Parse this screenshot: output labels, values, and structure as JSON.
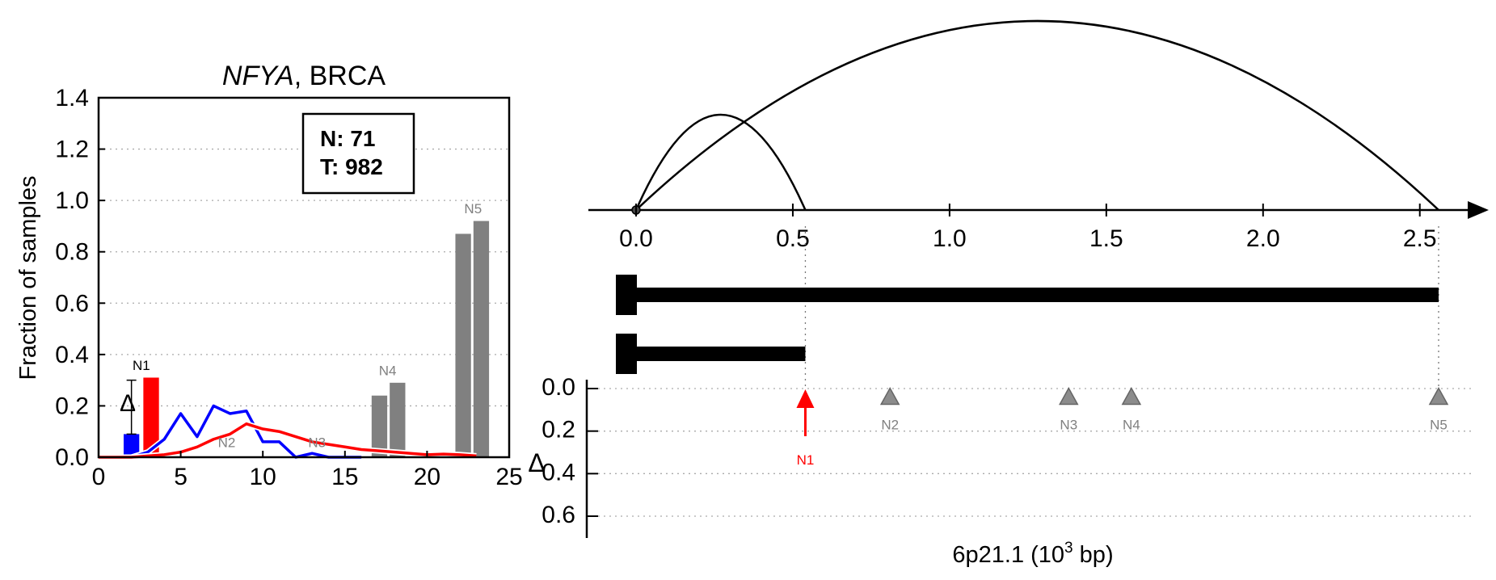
{
  "chart_data": [
    {
      "type": "bar",
      "title_gene": "NFYA",
      "title_rest": ", BRCA",
      "ylabel": "Fraction of samples",
      "xlabel": "",
      "xlim": [
        0,
        25
      ],
      "ylim": [
        0,
        1.4
      ],
      "xticks": [
        "0",
        "5",
        "10",
        "15",
        "20",
        "25"
      ],
      "yticks": [
        "0.0",
        "0.2",
        "0.4",
        "0.6",
        "0.8",
        "1.0",
        "1.2",
        "1.4"
      ],
      "grid": "y-dotted",
      "annotation_box": {
        "line1": "N: 71",
        "line2": "T: 982"
      },
      "delta_symbol": "Δ",
      "bars": [
        {
          "x": 2.0,
          "value": 0.09,
          "color": "#0000ff",
          "error": [
            0.09,
            0.3
          ]
        },
        {
          "x": 3.2,
          "value": 0.31,
          "color": "#ff0000"
        },
        {
          "x": 17.1,
          "value": 0.24,
          "color": "#808080"
        },
        {
          "x": 18.2,
          "value": 0.29,
          "color": "#808080"
        },
        {
          "x": 22.2,
          "value": 0.87,
          "color": "#808080"
        },
        {
          "x": 23.3,
          "value": 0.92,
          "color": "#808080"
        }
      ],
      "peak_labels": [
        {
          "text": "N1",
          "x": 2.6,
          "y": 0.34,
          "color": "#000000"
        },
        {
          "text": "N2",
          "x": 7.8,
          "y": 0.04,
          "color": "#808080"
        },
        {
          "text": "N3",
          "x": 13.3,
          "y": 0.04,
          "color": "#808080"
        },
        {
          "text": "N4",
          "x": 17.6,
          "y": 0.32,
          "color": "#808080"
        },
        {
          "text": "N5",
          "x": 22.8,
          "y": 0.95,
          "color": "#808080"
        }
      ],
      "series": [
        {
          "color": "#0000ff",
          "x": [
            0,
            1,
            2,
            3,
            4,
            5,
            6,
            7,
            8,
            9,
            10,
            11,
            12,
            13,
            14,
            15,
            16
          ],
          "y": [
            0,
            0,
            0,
            0.02,
            0.07,
            0.17,
            0.08,
            0.2,
            0.17,
            0.18,
            0.06,
            0.06,
            0,
            0.015,
            0,
            0,
            0
          ]
        },
        {
          "color": "#ff0000",
          "x": [
            0,
            1,
            2,
            3,
            4,
            5,
            6,
            7,
            8,
            9,
            10,
            11,
            12,
            13,
            14,
            15,
            16,
            17,
            18,
            19,
            20,
            21,
            22,
            23
          ],
          "y": [
            0,
            0,
            0,
            0.005,
            0.01,
            0.02,
            0.04,
            0.07,
            0.09,
            0.13,
            0.11,
            0.1,
            0.08,
            0.06,
            0.05,
            0.04,
            0.03,
            0.025,
            0.02,
            0.015,
            0.01,
            0.012,
            0.01,
            0.005
          ]
        }
      ]
    },
    {
      "type": "genomic-track",
      "xlabel": "6p21.1 (10³ bp)",
      "xlabel_base": "6p21.1 (10",
      "xlabel_exp": "3",
      "xlabel_tail": " bp)",
      "xlim": [
        -0.15,
        2.65
      ],
      "xticks": [
        "0.0",
        "0.5",
        "1.0",
        "1.5",
        "2.0",
        "2.5"
      ],
      "arcs": [
        {
          "from": 0.0,
          "to": 0.54,
          "height": 1.0
        },
        {
          "from": 0.0,
          "to": 2.56,
          "height": 1.0
        }
      ],
      "transcripts": [
        {
          "start": 0.0,
          "end": 2.56
        },
        {
          "start": 0.0,
          "end": 0.54
        }
      ],
      "delta_axis": {
        "label": "Δ",
        "ylim": [
          0,
          0.7
        ],
        "yticks": [
          "0.0",
          "0.2",
          "0.4",
          "0.6"
        ]
      },
      "markers": [
        {
          "name": "N1",
          "x": 0.54,
          "delta": 0.0,
          "color": "#ff0000",
          "arrow": true
        },
        {
          "name": "N2",
          "x": 0.81,
          "delta": 0.04,
          "color": "#808080"
        },
        {
          "name": "N3",
          "x": 1.38,
          "delta": 0.04,
          "color": "#808080"
        },
        {
          "name": "N4",
          "x": 1.58,
          "delta": 0.04,
          "color": "#808080"
        },
        {
          "name": "N5",
          "x": 2.56,
          "delta": 0.04,
          "color": "#808080"
        }
      ]
    }
  ]
}
